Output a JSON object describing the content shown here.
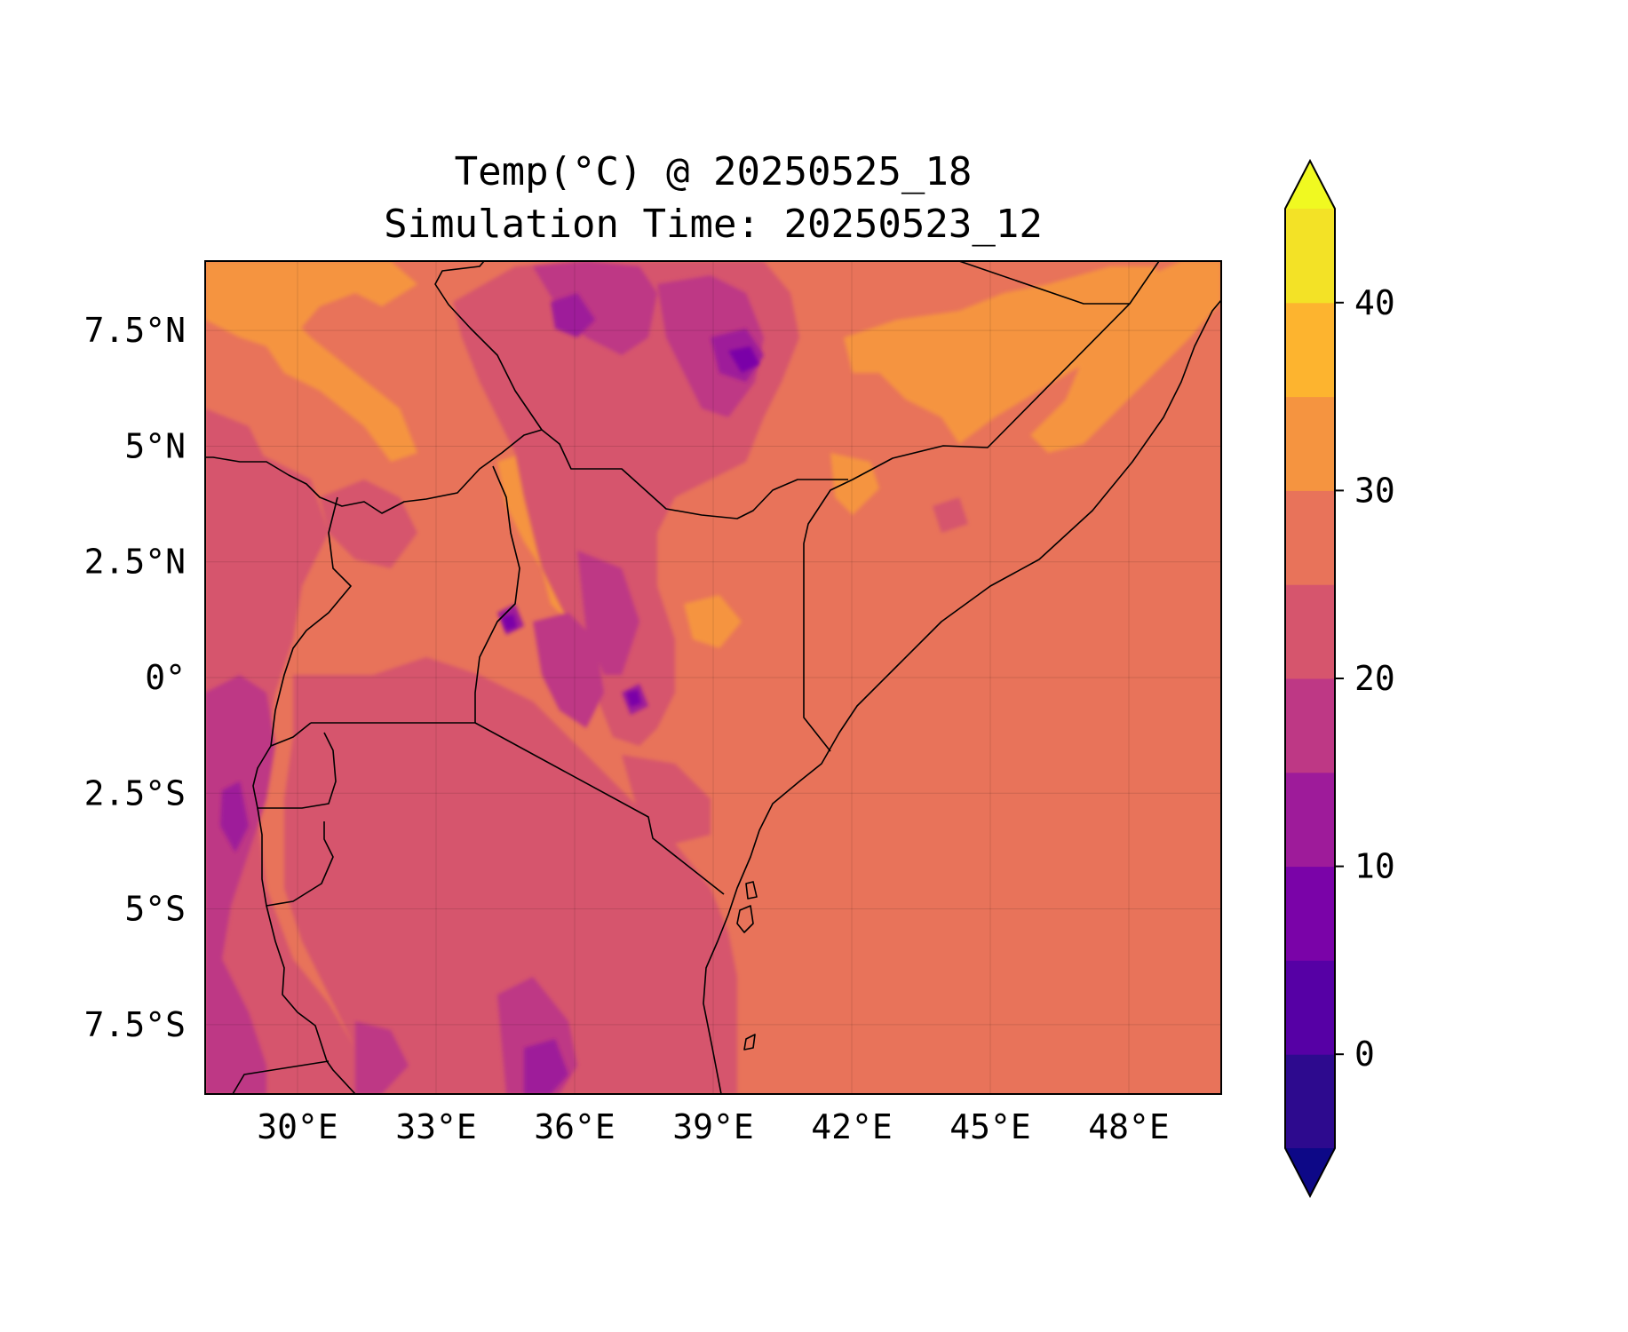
{
  "title": {
    "line1": "Temp(°C) @ 20250525_18",
    "line2": "Simulation Time: 20250523_12"
  },
  "map": {
    "projection": "PlateCarree",
    "lon_range": [
      28,
      50
    ],
    "lat_range": [
      -9,
      9
    ],
    "grid": true,
    "x_ticks": [
      {
        "value": 30,
        "label": "30°E"
      },
      {
        "value": 33,
        "label": "33°E"
      },
      {
        "value": 36,
        "label": "36°E"
      },
      {
        "value": 39,
        "label": "39°E"
      },
      {
        "value": 42,
        "label": "42°E"
      },
      {
        "value": 45,
        "label": "45°E"
      },
      {
        "value": 48,
        "label": "48°E"
      }
    ],
    "y_ticks": [
      {
        "value": 7.5,
        "label": "7.5°N"
      },
      {
        "value": 5,
        "label": "5°N"
      },
      {
        "value": 2.5,
        "label": "2.5°N"
      },
      {
        "value": 0,
        "label": "0°"
      },
      {
        "value": -2.5,
        "label": "2.5°S"
      },
      {
        "value": -5,
        "label": "5°S"
      },
      {
        "value": -7.5,
        "label": "7.5°S"
      }
    ],
    "dominant_field_color": "#E8735A"
  },
  "colorbar": {
    "cmap": "plasma",
    "range": [
      -5,
      45
    ],
    "extend": "both",
    "bounds": [
      -5,
      0,
      5,
      10,
      15,
      20,
      25,
      30,
      35,
      40,
      45
    ],
    "colors": [
      "#2D0A8E",
      "#5600A5",
      "#7A03A8",
      "#9E1B9A",
      "#BE3885",
      "#D6556D",
      "#E8735A",
      "#F59440",
      "#FDB42F",
      "#F3E226"
    ],
    "under_color": "#0D0887",
    "over_color": "#F0F921",
    "ticks": [
      {
        "value": 0,
        "label": "0"
      },
      {
        "value": 10,
        "label": "10"
      },
      {
        "value": 20,
        "label": "20"
      },
      {
        "value": 30,
        "label": "30"
      },
      {
        "value": 40,
        "label": "40"
      }
    ]
  }
}
